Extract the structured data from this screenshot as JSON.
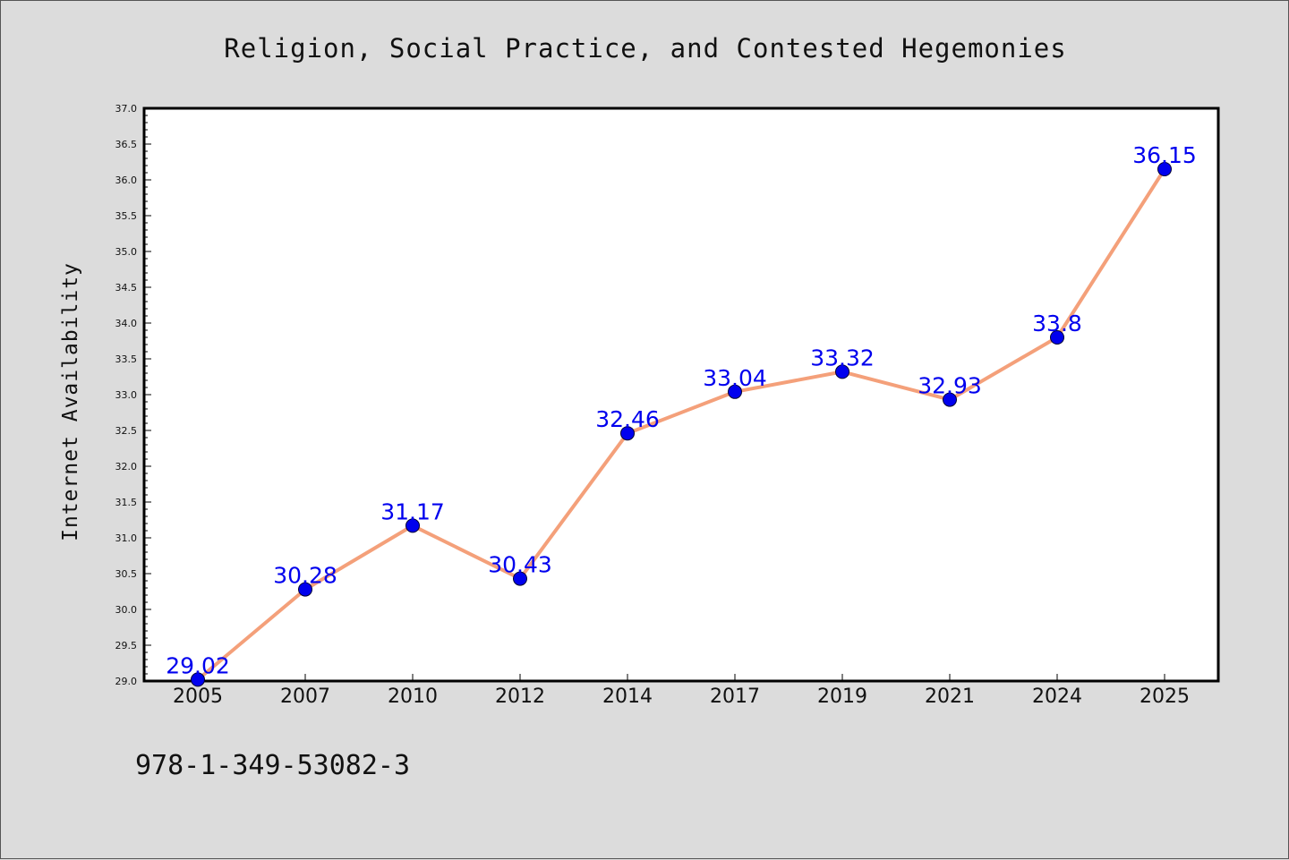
{
  "footer": {
    "isbn": "978-1-349-53082-3"
  },
  "colors": {
    "line": "#f4a07a",
    "marker": "#0000ee",
    "data_label": "#0000ee",
    "background": "#dcdcdc",
    "plot_background": "#ffffff"
  },
  "chart_data": {
    "type": "line",
    "title": "Religion, Social Practice, and Contested Hegemonies",
    "xlabel": "",
    "ylabel": "Internet Availability",
    "categories": [
      "2005",
      "2007",
      "2010",
      "2012",
      "2014",
      "2017",
      "2019",
      "2021",
      "2024",
      "2025"
    ],
    "series": [
      {
        "values": [
          29.02,
          30.28,
          31.17,
          30.43,
          32.46,
          33.04,
          33.32,
          32.93,
          33.8,
          36.15
        ]
      }
    ],
    "data_labels": [
      "29.02",
      "30.28",
      "31.17",
      "30.43",
      "32.46",
      "33.04",
      "33.32",
      "32.93",
      "33.8",
      "36.15"
    ],
    "ylim": [
      29.0,
      37.0
    ],
    "yticks": [
      "29.0",
      "29.5",
      "30.0",
      "30.5",
      "31.0",
      "31.5",
      "32.0",
      "32.5",
      "33.0",
      "33.5",
      "34.0",
      "34.5",
      "35.0",
      "35.5",
      "36.0",
      "36.5",
      "37.0"
    ],
    "grid": false,
    "legend": "none"
  }
}
